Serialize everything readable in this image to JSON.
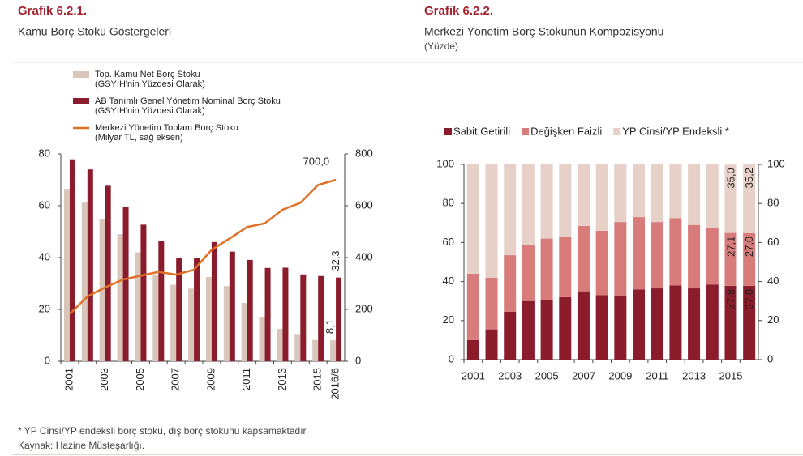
{
  "chart_data": [
    {
      "type": "bar",
      "label": "Grafik 6.2.1.",
      "title": "Kamu Borç Stoku Göstergeleri",
      "categories": [
        "2001",
        null,
        "2003",
        null,
        "2005",
        null,
        "2007",
        null,
        "2009",
        null,
        "2011",
        null,
        "2013",
        null,
        "2015",
        "2016/6"
      ],
      "series": [
        {
          "name": "Top. Kamu Net Borç Stoku\n(GSYİH'nin Yüzdesi Olarak)",
          "color": "#d9c6ba",
          "type": "bar",
          "values": [
            66.5,
            61.5,
            55,
            49,
            42,
            33.5,
            29.5,
            28,
            32.5,
            29,
            22.5,
            17,
            12.5,
            10.5,
            8.2,
            8.1
          ],
          "value_labels": [
            null,
            null,
            null,
            null,
            null,
            null,
            null,
            null,
            null,
            null,
            null,
            null,
            null,
            null,
            null,
            "8,1"
          ]
        },
        {
          "name": "AB Tanımlı Genel Yönetim Nominal Borç Stoku\n(GSYİH'nin Yüzdesi Olarak)",
          "color": "#8b1c2c",
          "type": "bar",
          "values": [
            77.9,
            74,
            67.7,
            59.6,
            52.7,
            46.5,
            39.9,
            40,
            46,
            42.3,
            39.1,
            36,
            36.1,
            33.5,
            32.9,
            32.3
          ],
          "value_labels": [
            null,
            null,
            null,
            null,
            null,
            null,
            null,
            null,
            null,
            null,
            null,
            null,
            null,
            null,
            null,
            "32,3"
          ]
        },
        {
          "name": "Merkezi Yönetim Toplam Borç Stoku\n(Milyar TL, sağ eksen)",
          "color": "#e07025",
          "type": "line",
          "axis": "y2",
          "values": [
            182,
            250,
            285,
            315,
            330,
            345,
            334,
            353,
            430,
            473,
            518,
            532,
            585,
            611,
            680,
            700
          ],
          "value_labels": [
            null,
            null,
            null,
            null,
            null,
            null,
            null,
            null,
            null,
            null,
            null,
            null,
            null,
            null,
            null,
            "700,0"
          ]
        }
      ],
      "ylim": [
        0,
        80
      ],
      "yticks": [
        0,
        20,
        40,
        60,
        80
      ],
      "y2lim": [
        0,
        800
      ],
      "y2ticks": [
        0,
        200,
        400,
        600,
        800
      ]
    },
    {
      "type": "stacked_bar",
      "label": "Grafik 6.2.2.",
      "title": "Merkezi Yönetim Borç Stokunun Kompozisyonu",
      "subtitle": "(Yüzde)",
      "categories": [
        "2001",
        null,
        "2003",
        null,
        "2005",
        null,
        "2007",
        null,
        "2009",
        null,
        "2011",
        null,
        "2013",
        null,
        "2015",
        null
      ],
      "series": [
        {
          "name": "Sabit Getirili",
          "color": "#8b1c2c",
          "values": [
            10,
            15.5,
            24.5,
            30,
            30.5,
            32,
            35,
            33,
            32.5,
            36,
            36.5,
            38,
            36.5,
            38.5,
            37.8,
            37.8
          ],
          "value_labels": [
            null,
            null,
            null,
            null,
            null,
            null,
            null,
            null,
            null,
            null,
            null,
            null,
            null,
            null,
            "37,8",
            "37,8"
          ]
        },
        {
          "name": "Değişken Faizli",
          "color": "#d87b7b",
          "values": [
            34,
            26.5,
            29,
            28.5,
            31.5,
            31,
            33.5,
            33,
            38,
            37,
            34,
            34.5,
            32.5,
            29,
            27.1,
            27.0
          ],
          "value_labels": [
            null,
            null,
            null,
            null,
            null,
            null,
            null,
            null,
            null,
            null,
            null,
            null,
            null,
            null,
            "27,1",
            "27,0"
          ]
        },
        {
          "name": "YP Cinsi/YP Endeksli *",
          "color": "#e6d0c7",
          "values": [
            56,
            58,
            46.5,
            41.5,
            38,
            37,
            31.5,
            34,
            29.5,
            27,
            29.5,
            27.5,
            31,
            32.5,
            35.0,
            35.2
          ],
          "value_labels": [
            null,
            null,
            null,
            null,
            null,
            null,
            null,
            null,
            null,
            null,
            null,
            null,
            null,
            null,
            "35,0",
            "35,2"
          ]
        }
      ],
      "ylim": [
        0,
        100
      ],
      "yticks": [
        0,
        20,
        40,
        60,
        80,
        100
      ],
      "y2lim": [
        0,
        100
      ],
      "y2ticks": [
        0,
        20,
        40,
        60,
        80,
        100
      ]
    }
  ],
  "footnotes": [
    "* YP Cinsi/YP endeksli borç stoku, dış borç stokunu kapsamaktadır.",
    "Kaynak: Hazine Müsteşarlığı."
  ]
}
